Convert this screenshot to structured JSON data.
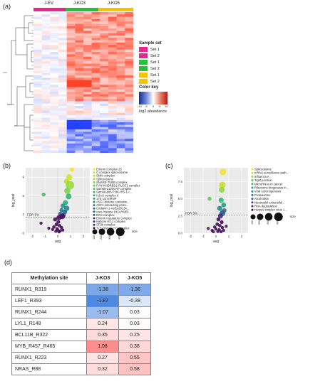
{
  "panel_a": {
    "label": "(a)",
    "groups": [
      {
        "name": "J-EV",
        "color": "#e4288c"
      },
      {
        "name": "J-KO3",
        "color": "#2bbd3a"
      },
      {
        "name": "J-KO5",
        "color": "#f5c400"
      }
    ],
    "sample_set_title": "Sample set",
    "sample_sets": [
      {
        "label": "Set 1",
        "color": "#e4288c"
      },
      {
        "label": "Set 2",
        "color": "#e4288c"
      },
      {
        "label": "Set 1",
        "color": "#2bbd3a"
      },
      {
        "label": "Set 2",
        "color": "#2bbd3a"
      },
      {
        "label": "Set 1",
        "color": "#f5c400"
      },
      {
        "label": "Set 2",
        "color": "#f5c400"
      }
    ],
    "color_key_title": "Color key",
    "color_key_ticks": [
      "-10",
      "-5",
      "0",
      "5",
      "10"
    ],
    "color_key_label": "log2 abundance"
  },
  "panel_b": {
    "label": "(b)",
    "ylabel": "log_pval",
    "xlabel": "avg",
    "fdr_label": "FDR 5%",
    "size_label": "size",
    "size_ticks": [
      "100",
      "200",
      "300",
      "400"
    ],
    "legend": [
      {
        "label": "Emerin complex 25",
        "color": "#f2e236"
      },
      {
        "label": "C complex spliceosome",
        "color": "#d6e22c"
      },
      {
        "label": "SMN complex",
        "color": "#b8de2c"
      },
      {
        "label": "Spliceosome",
        "color": "#9ad93a"
      },
      {
        "label": "SNARE-TUBB complex",
        "color": "#7ed34a"
      },
      {
        "label": "FYN-KHDRBS1-PLCG1 complex",
        "color": "#5ec95a"
      },
      {
        "label": "Sam68-p120GAP complex",
        "color": "#45bf6c"
      },
      {
        "label": "Sam68-p85 PI3K-IRS-1-I...",
        "color": "#32b57b"
      },
      {
        "label": "H2AX complex II",
        "color": "#26a884"
      },
      {
        "label": "17S U2 snRNP",
        "color": "#22998a"
      },
      {
        "label": "ASF1-histone containin...",
        "color": "#238a8d"
      },
      {
        "label": "ASF1-interacting prote...",
        "color": "#277b8e"
      },
      {
        "label": "Codanin-1-Asf1a2013n...",
        "color": "#2c6c8e"
      },
      {
        "label": "core-Histone (H2A/H2B/...",
        "color": "#325c8c"
      },
      {
        "label": "DCS complex",
        "color": "#384a88"
      },
      {
        "label": "Emerin regulatory complex",
        "color": "#3d3a80"
      },
      {
        "label": "Histone H2.1 complex",
        "color": "#432a75"
      },
      {
        "label": "SF3b complex",
        "color": "#461a68"
      },
      {
        "label": "TLE-Histone H3 complex",
        "color": "#440c57"
      }
    ]
  },
  "panel_c": {
    "label": "(c)",
    "ylabel": "log_pval",
    "xlabel": "avg",
    "fdr_label": "FDR 5%",
    "size_label": "size",
    "size_ticks": [
      "100",
      "200",
      "300",
      "400"
    ],
    "legend": [
      {
        "label": "Spliceosome",
        "color": "#f2e236"
      },
      {
        "label": "mRNA surveillance path...",
        "color": "#c9e02a"
      },
      {
        "label": "Influenza A",
        "color": "#94d840"
      },
      {
        "label": "Tight junction",
        "color": "#5ec95a"
      },
      {
        "label": "MicroRNAs in cancer",
        "color": "#34b679"
      },
      {
        "label": "Ribosome biogenesis in...",
        "color": "#22a386"
      },
      {
        "label": "Viral carcinogenesis",
        "color": "#238a8d"
      },
      {
        "label": "Proteasome",
        "color": "#2c718e"
      },
      {
        "label": "Alcoholism",
        "color": "#355a8c"
      },
      {
        "label": "Neutrophil extracellul...",
        "color": "#3e4384"
      },
      {
        "label": "RNA degradation",
        "color": "#452c78"
      },
      {
        "label": "Herpes simplex virus 1...",
        "color": "#440c57"
      }
    ]
  },
  "panel_d": {
    "label": "(d)",
    "header": [
      "Methylation site",
      "J-KO3",
      "J-KO5"
    ],
    "rows": [
      {
        "site": "RUNX1_R319",
        "ko3": "-1.38",
        "ko5": "-1.36",
        "ko3_v": -1.38,
        "ko5_v": -1.36
      },
      {
        "site": "LEF1_R393",
        "ko3": "-1.87",
        "ko5": "-0.38",
        "ko3_v": -1.87,
        "ko5_v": -0.38
      },
      {
        "site": "RUNX1_R244",
        "ko3": "-1.07",
        "ko5": "0.03",
        "ko3_v": -1.07,
        "ko5_v": 0.03
      },
      {
        "site": "LYL1_R148",
        "ko3": "0.24",
        "ko5": "0.03",
        "ko3_v": 0.24,
        "ko5_v": 0.03
      },
      {
        "site": "BCL11B_R322",
        "ko3": "0.35",
        "ko5": "0.25",
        "ko3_v": 0.35,
        "ko5_v": 0.25
      },
      {
        "site": "MYB_R457_R465",
        "ko3": "1.08",
        "ko5": "0.38",
        "ko3_v": 1.08,
        "ko5_v": 0.38
      },
      {
        "site": "RUNX1_R223",
        "ko3": "0.27",
        "ko5": "0.55",
        "ko3_v": 0.27,
        "ko5_v": 0.55
      },
      {
        "site": "NRAS_R88",
        "ko3": "0.32",
        "ko5": "0.58",
        "ko3_v": 0.32,
        "ko5_v": 0.58
      }
    ]
  },
  "chart_data": [
    {
      "type": "scatter",
      "panel": "b",
      "xlabel": "avg",
      "ylabel": "log_pval",
      "xlim": [
        -2.5,
        2.5
      ],
      "ylim": [
        0,
        10.5
      ],
      "xticks": [
        "-2",
        "-1",
        "0",
        "1",
        "2"
      ],
      "yticks": [
        "0",
        "3",
        "6",
        "9"
      ],
      "fdr_y": 2.6,
      "points": [
        {
          "x": 1.1,
          "y": 10.2,
          "s": 60,
          "c": "#f2e236"
        },
        {
          "x": 0.9,
          "y": 9.0,
          "s": 160,
          "c": "#d6e22c"
        },
        {
          "x": 0.7,
          "y": 8.3,
          "s": 120,
          "c": "#b8de2c"
        },
        {
          "x": 0.95,
          "y": 7.7,
          "s": 380,
          "c": "#9ad93a"
        },
        {
          "x": 0.75,
          "y": 6.8,
          "s": 180,
          "c": "#7ed34a"
        },
        {
          "x": -1.1,
          "y": 6.2,
          "s": 50,
          "c": "#45bf6c"
        },
        {
          "x": 0.85,
          "y": 5.9,
          "s": 150,
          "c": "#32b57b"
        },
        {
          "x": 0.6,
          "y": 4.9,
          "s": 100,
          "c": "#26a884"
        },
        {
          "x": 0.4,
          "y": 4.4,
          "s": 80,
          "c": "#22998a"
        },
        {
          "x": 0.7,
          "y": 4.0,
          "s": 120,
          "c": "#238a8d"
        },
        {
          "x": 0.3,
          "y": 3.7,
          "s": 60,
          "c": "#277b8e"
        },
        {
          "x": 0.55,
          "y": 3.4,
          "s": 90,
          "c": "#2c6c8e"
        },
        {
          "x": 0.2,
          "y": 3.1,
          "s": 60,
          "c": "#325c8c"
        },
        {
          "x": 0.45,
          "y": 2.9,
          "s": 70,
          "c": "#384a88"
        },
        {
          "x": 0.35,
          "y": 2.7,
          "s": 130,
          "c": "#440c57"
        },
        {
          "x": 0.1,
          "y": 2.5,
          "s": 100,
          "c": "#440c57"
        },
        {
          "x": -0.2,
          "y": 2.2,
          "s": 50,
          "c": "#440c57"
        },
        {
          "x": 0.05,
          "y": 1.8,
          "s": 40,
          "c": "#440c57"
        },
        {
          "x": -0.1,
          "y": 1.4,
          "s": 40,
          "c": "#440c57"
        },
        {
          "x": 0.15,
          "y": 1.2,
          "s": 30,
          "c": "#440c57"
        },
        {
          "x": -0.3,
          "y": 1.0,
          "s": 30,
          "c": "#440c57"
        },
        {
          "x": 0.3,
          "y": 0.9,
          "s": 25,
          "c": "#440c57"
        },
        {
          "x": -0.05,
          "y": 0.7,
          "s": 25,
          "c": "#440c57"
        },
        {
          "x": 0.0,
          "y": 0.5,
          "s": 20,
          "c": "#440c57"
        },
        {
          "x": 0.2,
          "y": 0.4,
          "s": 20,
          "c": "#440c57"
        },
        {
          "x": -0.15,
          "y": 0.3,
          "s": 20,
          "c": "#440c57"
        },
        {
          "x": 0.1,
          "y": 0.2,
          "s": 20,
          "c": "#440c57"
        },
        {
          "x": -0.4,
          "y": 0.6,
          "s": 20,
          "c": "#440c57"
        },
        {
          "x": 0.4,
          "y": 0.5,
          "s": 20,
          "c": "#440c57"
        },
        {
          "x": -1.3,
          "y": 1.6,
          "s": 20,
          "c": "#440c57"
        },
        {
          "x": -0.7,
          "y": 0.8,
          "s": 20,
          "c": "#440c57"
        }
      ]
    },
    {
      "type": "scatter",
      "panel": "c",
      "xlabel": "avg",
      "ylabel": "log_pval",
      "xlim": [
        -2.5,
        2.5
      ],
      "ylim": [
        0,
        9.5
      ],
      "xticks": [
        "-2",
        "-1",
        "0",
        "1",
        "2"
      ],
      "yticks": [
        "0.0",
        "2.5",
        "5.0",
        "7.5"
      ],
      "fdr_y": 2.6,
      "points": [
        {
          "x": 0.55,
          "y": 8.9,
          "s": 220,
          "c": "#f2e236"
        },
        {
          "x": 0.5,
          "y": 7.0,
          "s": 200,
          "c": "#c9e02a"
        },
        {
          "x": 0.45,
          "y": 6.3,
          "s": 150,
          "c": "#94d840"
        },
        {
          "x": -0.5,
          "y": 5.0,
          "s": 50,
          "c": "#5ec95a"
        },
        {
          "x": 0.4,
          "y": 4.8,
          "s": 110,
          "c": "#34b679"
        },
        {
          "x": 0.6,
          "y": 4.1,
          "s": 90,
          "c": "#22a386"
        },
        {
          "x": 0.3,
          "y": 3.6,
          "s": 100,
          "c": "#238a8d"
        },
        {
          "x": 0.65,
          "y": 3.3,
          "s": 70,
          "c": "#2c718e"
        },
        {
          "x": 0.5,
          "y": 2.9,
          "s": 150,
          "c": "#355a8c"
        },
        {
          "x": 0.35,
          "y": 2.5,
          "s": 100,
          "c": "#452c78"
        },
        {
          "x": 0.2,
          "y": 2.0,
          "s": 50,
          "c": "#440c57"
        },
        {
          "x": 0.45,
          "y": 1.6,
          "s": 40,
          "c": "#440c57"
        },
        {
          "x": 0.1,
          "y": 1.3,
          "s": 30,
          "c": "#440c57"
        },
        {
          "x": 0.3,
          "y": 1.1,
          "s": 30,
          "c": "#440c57"
        },
        {
          "x": -0.1,
          "y": 0.9,
          "s": 25,
          "c": "#440c57"
        },
        {
          "x": 0.5,
          "y": 0.8,
          "s": 25,
          "c": "#440c57"
        },
        {
          "x": 0.0,
          "y": 0.6,
          "s": 20,
          "c": "#440c57"
        },
        {
          "x": 0.25,
          "y": 0.5,
          "s": 20,
          "c": "#440c57"
        },
        {
          "x": -0.3,
          "y": 0.4,
          "s": 20,
          "c": "#440c57"
        },
        {
          "x": 0.6,
          "y": 0.4,
          "s": 20,
          "c": "#440c57"
        },
        {
          "x": 0.15,
          "y": 0.25,
          "s": 20,
          "c": "#440c57"
        },
        {
          "x": -0.2,
          "y": 0.2,
          "s": 20,
          "c": "#440c57"
        },
        {
          "x": 0.4,
          "y": 0.2,
          "s": 20,
          "c": "#440c57"
        },
        {
          "x": -0.6,
          "y": 0.7,
          "s": 20,
          "c": "#440c57"
        },
        {
          "x": 0.8,
          "y": 1.0,
          "s": 20,
          "c": "#440c57"
        }
      ]
    }
  ]
}
